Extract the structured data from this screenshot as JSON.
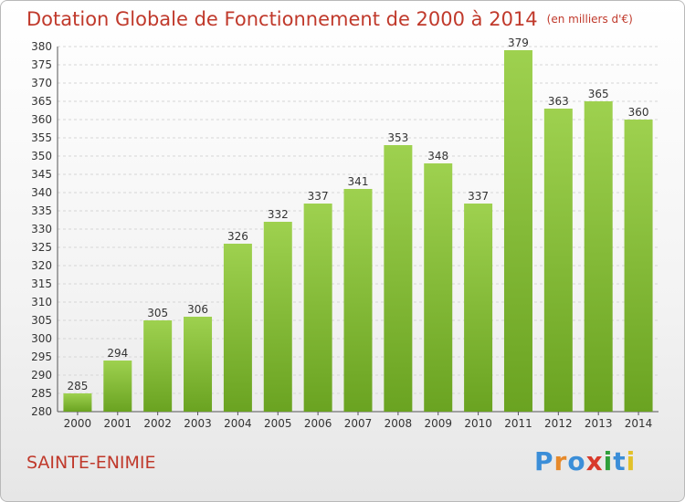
{
  "chart_data": {
    "type": "bar",
    "title": "Dotation Globale de Fonctionnement de 2000 à 2014",
    "unit": "(en milliers d'€)",
    "categories": [
      "2000",
      "2001",
      "2002",
      "2003",
      "2004",
      "2005",
      "2006",
      "2007",
      "2008",
      "2009",
      "2010",
      "2011",
      "2012",
      "2013",
      "2014"
    ],
    "values": [
      285,
      294,
      305,
      306,
      326,
      332,
      337,
      341,
      353,
      348,
      337,
      379,
      363,
      365,
      360
    ],
    "ylim": [
      280,
      380
    ],
    "ytick_step": 5,
    "grid": true,
    "bar_color_top": "#9ed14f",
    "bar_color_bottom": "#6aa321"
  },
  "footer": {
    "commune": "SAINTE-ENIMIE",
    "logo_letters": [
      {
        "ch": "P",
        "color": "#3b8ed8"
      },
      {
        "ch": "r",
        "color": "#e6892a"
      },
      {
        "ch": "o",
        "color": "#3b8ed8"
      },
      {
        "ch": "x",
        "color": "#d83a2b"
      },
      {
        "ch": "i",
        "color": "#2f9f3a"
      },
      {
        "ch": "t",
        "color": "#3b8ed8"
      },
      {
        "ch": "i",
        "color": "#e2c12a"
      }
    ]
  }
}
